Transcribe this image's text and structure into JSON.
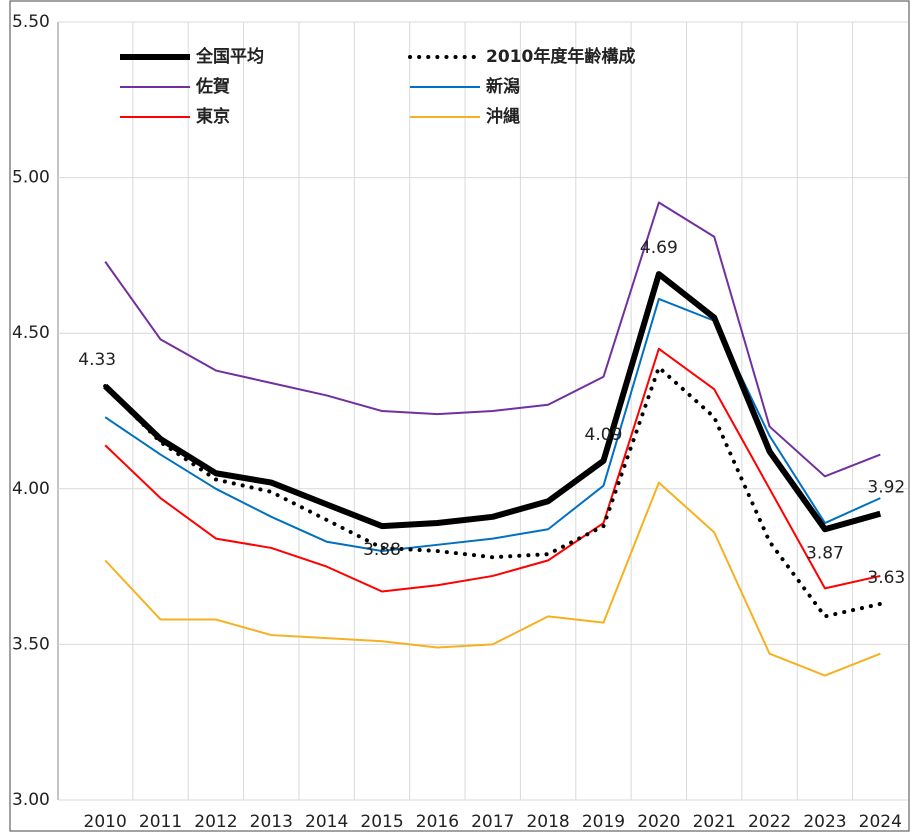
{
  "chart_data": {
    "type": "line",
    "categories": [
      "2010",
      "2011",
      "2012",
      "2013",
      "2014",
      "2015",
      "2016",
      "2017",
      "2018",
      "2019",
      "2020",
      "2021",
      "2022",
      "2023",
      "2024"
    ],
    "ylim": [
      3.0,
      5.5
    ],
    "yticks": [
      {
        "value": 3.0,
        "label": "3.00"
      },
      {
        "value": 3.5,
        "label": "3.50"
      },
      {
        "value": 4.0,
        "label": "4.00"
      },
      {
        "value": 4.5,
        "label": "4.50"
      },
      {
        "value": 5.0,
        "label": "5.00"
      },
      {
        "value": 5.5,
        "label": "5.50"
      }
    ],
    "grid": true,
    "series": [
      {
        "name": "全国平均",
        "color": "#000000",
        "width": 6,
        "dash": "solid",
        "values": [
          4.33,
          4.16,
          4.05,
          4.02,
          3.95,
          3.88,
          3.89,
          3.91,
          3.96,
          4.09,
          4.69,
          4.55,
          4.12,
          3.87,
          3.92
        ],
        "value_labels": [
          "4.33",
          null,
          null,
          null,
          null,
          "3.88",
          null,
          null,
          null,
          "4.09",
          "4.69",
          null,
          null,
          "3.87",
          "3.92"
        ]
      },
      {
        "name": "2010年度年齢構成",
        "color": "#000000",
        "width": 4,
        "dash": "dotted",
        "values": [
          4.33,
          4.15,
          4.03,
          3.99,
          3.9,
          3.81,
          3.8,
          3.78,
          3.79,
          3.88,
          4.39,
          4.23,
          3.83,
          3.59,
          3.63
        ],
        "value_labels": [
          null,
          null,
          null,
          null,
          null,
          null,
          null,
          null,
          null,
          null,
          null,
          null,
          null,
          null,
          "3.63"
        ]
      },
      {
        "name": "佐賀",
        "color": "#7030a0",
        "width": 2,
        "dash": "solid",
        "values": [
          4.73,
          4.48,
          4.38,
          4.34,
          4.3,
          4.25,
          4.24,
          4.25,
          4.27,
          4.36,
          4.92,
          4.81,
          4.2,
          4.04,
          4.11
        ]
      },
      {
        "name": "新潟",
        "color": "#0070c0",
        "width": 2,
        "dash": "solid",
        "values": [
          4.23,
          4.11,
          4.0,
          3.91,
          3.83,
          3.8,
          3.82,
          3.84,
          3.87,
          4.01,
          4.61,
          4.54,
          4.17,
          3.89,
          3.97
        ]
      },
      {
        "name": "東京",
        "color": "#ff0000",
        "width": 2,
        "dash": "solid",
        "values": [
          4.14,
          3.97,
          3.84,
          3.81,
          3.75,
          3.67,
          3.69,
          3.72,
          3.77,
          3.89,
          4.45,
          4.32,
          4.0,
          3.68,
          3.72
        ]
      },
      {
        "name": "沖縄",
        "color": "#f5b122",
        "width": 2,
        "dash": "solid",
        "values": [
          3.77,
          3.58,
          3.58,
          3.53,
          3.52,
          3.51,
          3.49,
          3.5,
          3.59,
          3.57,
          4.02,
          3.86,
          3.47,
          3.4,
          3.47
        ]
      }
    ]
  }
}
